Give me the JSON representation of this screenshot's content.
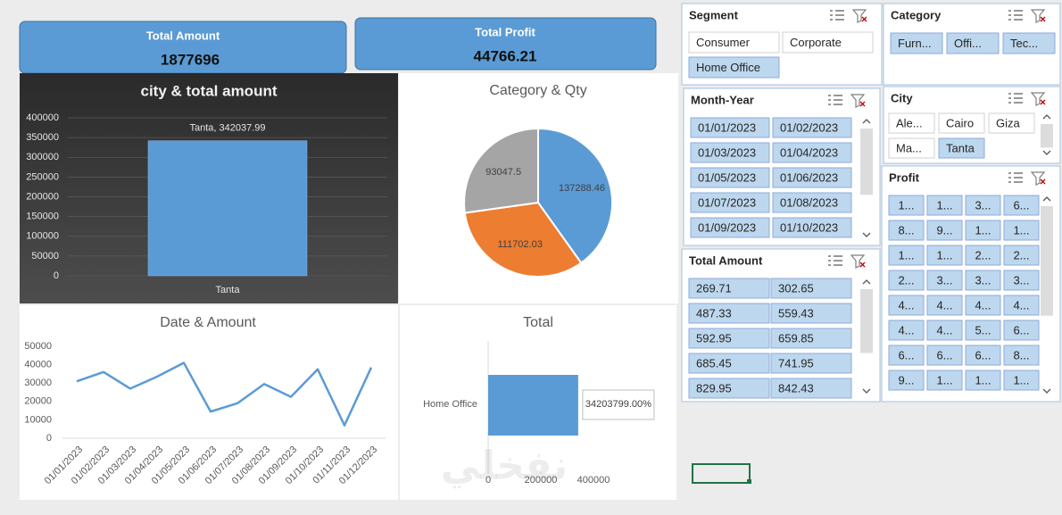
{
  "cards": [
    {
      "title": "Total Amount",
      "value": 1877696
    },
    {
      "title": "Total Profit",
      "value": 44766.21
    }
  ],
  "chart_data": [
    {
      "type": "bar",
      "title": "city & total amount",
      "categories": [
        "Tanta"
      ],
      "values": [
        342037.99
      ],
      "value_labels": [
        "Tanta, 342037.99"
      ],
      "color": "#5b9bd5",
      "ylim": [
        0,
        400000
      ],
      "yticks": [
        0,
        50000,
        100000,
        150000,
        200000,
        250000,
        300000,
        350000,
        400000
      ],
      "grid": true
    },
    {
      "type": "pie",
      "title": "Category & Qty",
      "values": [
        137288.46,
        111702.03,
        93047.5
      ],
      "colors": [
        "#5b9bd5",
        "#ed7d31",
        "#a5a5a5"
      ]
    },
    {
      "type": "line",
      "title": "Date & Amount",
      "categories": [
        "01/01/2023",
        "01/02/2023",
        "01/03/2023",
        "01/04/2023",
        "01/05/2023",
        "01/06/2023",
        "01/07/2023",
        "01/08/2023",
        "01/09/2023",
        "01/10/2023",
        "01/11/2023",
        "01/12/2023"
      ],
      "values": [
        31000,
        36000,
        27000,
        33500,
        41000,
        14500,
        19000,
        29500,
        22500,
        37500,
        7000,
        38500
      ],
      "color": "#5b9bd5",
      "ylim": [
        0,
        50000
      ],
      "yticks": [
        0,
        10000,
        20000,
        30000,
        40000,
        50000
      ],
      "grid": false
    },
    {
      "type": "hbar",
      "title": "Total",
      "categories": [
        "Home Office"
      ],
      "values": [
        342037.99
      ],
      "value_labels": [
        "34203799.00%"
      ],
      "color": "#5b9bd5",
      "xlim": [
        0,
        400000
      ],
      "xticks": [
        0,
        200000,
        400000
      ]
    }
  ],
  "slicers": [
    {
      "title": "Segment",
      "items": [
        {
          "label": "Consumer",
          "selected": false
        },
        {
          "label": "Corporate",
          "selected": false
        },
        {
          "label": "Home Office",
          "selected": true
        }
      ]
    },
    {
      "title": "Category",
      "items": [
        {
          "label": "Furn...",
          "selected": true
        },
        {
          "label": "Offi...",
          "selected": true
        },
        {
          "label": "Tec...",
          "selected": true
        }
      ]
    },
    {
      "title": "Month-Year",
      "items": [
        {
          "label": "01/01/2023",
          "selected": true
        },
        {
          "label": "01/02/2023",
          "selected": true
        },
        {
          "label": "01/03/2023",
          "selected": true
        },
        {
          "label": "01/04/2023",
          "selected": true
        },
        {
          "label": "01/05/2023",
          "selected": true
        },
        {
          "label": "01/06/2023",
          "selected": true
        },
        {
          "label": "01/07/2023",
          "selected": true
        },
        {
          "label": "01/08/2023",
          "selected": true
        },
        {
          "label": "01/09/2023",
          "selected": true
        },
        {
          "label": "01/10/2023",
          "selected": true
        }
      ]
    },
    {
      "title": "City",
      "items": [
        {
          "label": "Ale...",
          "selected": false
        },
        {
          "label": "Cairo",
          "selected": false
        },
        {
          "label": "Giza",
          "selected": false
        },
        {
          "label": "Ma...",
          "selected": false
        },
        {
          "label": "Tanta",
          "selected": true
        }
      ]
    },
    {
      "title": "Total Amount",
      "items": [
        {
          "label": "269.71",
          "selected": true
        },
        {
          "label": "302.65",
          "selected": true
        },
        {
          "label": "487.33",
          "selected": true
        },
        {
          "label": "559.43",
          "selected": true
        },
        {
          "label": "592.95",
          "selected": true
        },
        {
          "label": "659.85",
          "selected": true
        },
        {
          "label": "685.45",
          "selected": true
        },
        {
          "label": "741.95",
          "selected": true
        },
        {
          "label": "829.95",
          "selected": true
        },
        {
          "label": "842.43",
          "selected": true
        }
      ]
    },
    {
      "title": "Profit",
      "items": [
        {
          "label": "1...",
          "selected": true
        },
        {
          "label": "1...",
          "selected": true
        },
        {
          "label": "3...",
          "selected": true
        },
        {
          "label": "6...",
          "selected": true
        },
        {
          "label": "8...",
          "selected": true
        },
        {
          "label": "9...",
          "selected": true
        },
        {
          "label": "1...",
          "selected": true
        },
        {
          "label": "1...",
          "selected": true
        },
        {
          "label": "1...",
          "selected": true
        },
        {
          "label": "1...",
          "selected": true
        },
        {
          "label": "2...",
          "selected": true
        },
        {
          "label": "2...",
          "selected": true
        },
        {
          "label": "2...",
          "selected": true
        },
        {
          "label": "3...",
          "selected": true
        },
        {
          "label": "3...",
          "selected": true
        },
        {
          "label": "3...",
          "selected": true
        },
        {
          "label": "4...",
          "selected": true
        },
        {
          "label": "4...",
          "selected": true
        },
        {
          "label": "4...",
          "selected": true
        },
        {
          "label": "4...",
          "selected": true
        },
        {
          "label": "4...",
          "selected": true
        },
        {
          "label": "4...",
          "selected": true
        },
        {
          "label": "5...",
          "selected": true
        },
        {
          "label": "6...",
          "selected": true
        },
        {
          "label": "6...",
          "selected": true
        },
        {
          "label": "6...",
          "selected": true
        },
        {
          "label": "6...",
          "selected": true
        },
        {
          "label": "8...",
          "selected": true
        },
        {
          "label": "9...",
          "selected": true
        },
        {
          "label": "1...",
          "selected": true
        },
        {
          "label": "1...",
          "selected": true
        },
        {
          "label": "1...",
          "selected": true
        }
      ]
    }
  ],
  "watermark": "نفخلي"
}
